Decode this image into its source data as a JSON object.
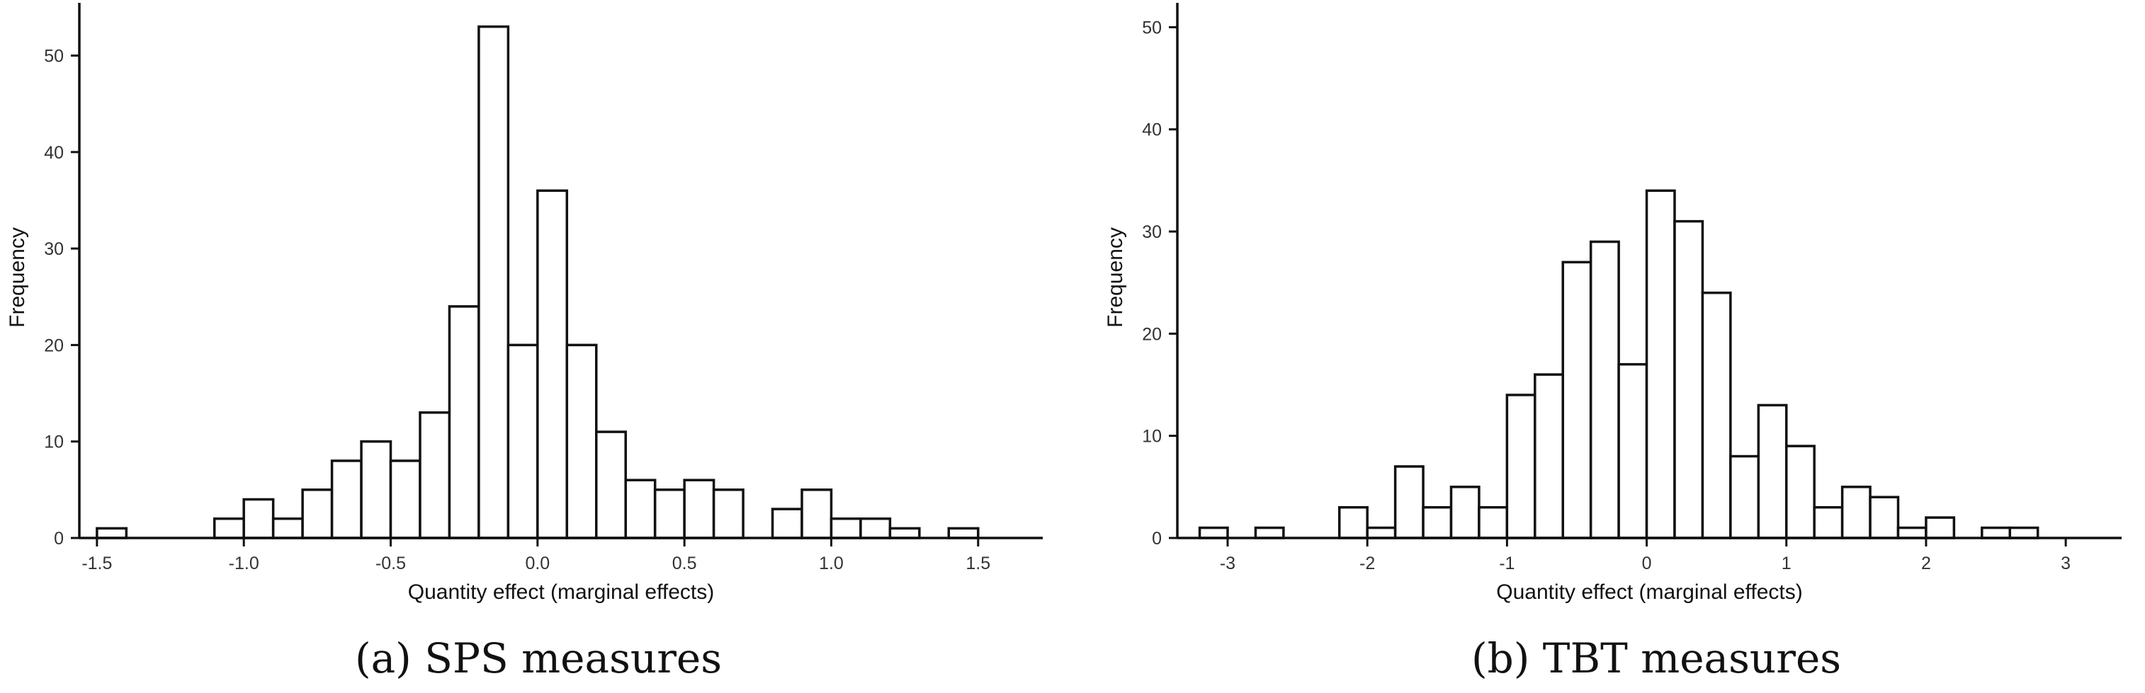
{
  "chart_data": [
    {
      "type": "bar",
      "caption": "(a) SPS measures",
      "xlabel": "Quantity effect (marginal effects)",
      "ylabel": "Frequency",
      "xlim": [
        -1.56,
        1.72
      ],
      "ylim": [
        0,
        54
      ],
      "xticks": [
        -1.5,
        -1.0,
        -0.5,
        0.0,
        0.5,
        1.0,
        1.5
      ],
      "xtick_labels": [
        "-1.5",
        "-1.0",
        "-0.5",
        "0.0",
        "0.5",
        "1.0",
        "1.5"
      ],
      "yticks": [
        0,
        10,
        20,
        30,
        40,
        50
      ],
      "bin_start": -1.5,
      "bin_width": 0.1,
      "values": [
        1,
        0,
        0,
        0,
        2,
        4,
        2,
        5,
        8,
        10,
        8,
        13,
        24,
        53,
        20,
        36,
        20,
        11,
        6,
        5,
        6,
        5,
        0,
        3,
        5,
        2,
        2,
        1,
        0,
        1
      ]
    },
    {
      "type": "bar",
      "caption": "(b) TBT measures",
      "xlabel": "Quantity effect (marginal effects)",
      "ylabel": "Frequency",
      "xlim": [
        -3.36,
        3.4
      ],
      "ylim": [
        0,
        51
      ],
      "xticks": [
        -3,
        -2,
        -1,
        0,
        1,
        2,
        3
      ],
      "xtick_labels": [
        "-3",
        "-2",
        "-1",
        "0",
        "1",
        "2",
        "3"
      ],
      "yticks": [
        0,
        10,
        20,
        30,
        40,
        50
      ],
      "bin_start": -3.2,
      "bin_width": 0.2,
      "values": [
        1,
        0,
        1,
        0,
        0,
        3,
        1,
        7,
        3,
        5,
        3,
        14,
        16,
        27,
        29,
        17,
        34,
        31,
        24,
        8,
        13,
        9,
        3,
        5,
        4,
        1,
        2,
        0,
        1,
        1
      ]
    }
  ]
}
